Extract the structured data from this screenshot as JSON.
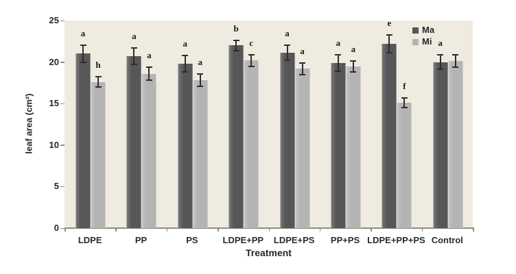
{
  "chart_data": {
    "type": "bar",
    "title": "",
    "xlabel": "Treatment",
    "ylabel": "leaf area (cm²)",
    "ylim": [
      0,
      25
    ],
    "yticks": [
      0,
      5,
      10,
      15,
      20,
      25
    ],
    "grid": false,
    "legend_position": "top-right-inside",
    "plot_bg_color": "#efebe0",
    "axis_color": "#8f8b81",
    "error_bar_color": "#2d2d2d",
    "text_color": "#262626",
    "categories": [
      "LDPE",
      "PP",
      "PS",
      "LDPE+PP",
      "LDPE+PS",
      "PP+PS",
      "LDPE+PP+PS",
      "Control"
    ],
    "series": [
      {
        "name": "Ma",
        "color": "#575757",
        "values": [
          21.0,
          20.7,
          19.8,
          22.0,
          21.1,
          19.9,
          22.2,
          20.0
        ],
        "errors": [
          1.0,
          1.0,
          1.0,
          0.6,
          0.9,
          1.0,
          1.1,
          0.85
        ],
        "letters": [
          "a",
          "a",
          "a",
          "b",
          "a",
          "a",
          "e",
          "a"
        ]
      },
      {
        "name": "Mi",
        "color": "#b4b4b4",
        "values": [
          17.6,
          18.6,
          17.8,
          20.2,
          19.2,
          19.5,
          15.1,
          20.1
        ],
        "errors": [
          0.6,
          0.75,
          0.75,
          0.7,
          0.7,
          0.65,
          0.6,
          0.75
        ],
        "letters": [
          "h",
          "a",
          "a",
          "c",
          "a",
          "a",
          "f",
          ""
        ]
      }
    ]
  }
}
